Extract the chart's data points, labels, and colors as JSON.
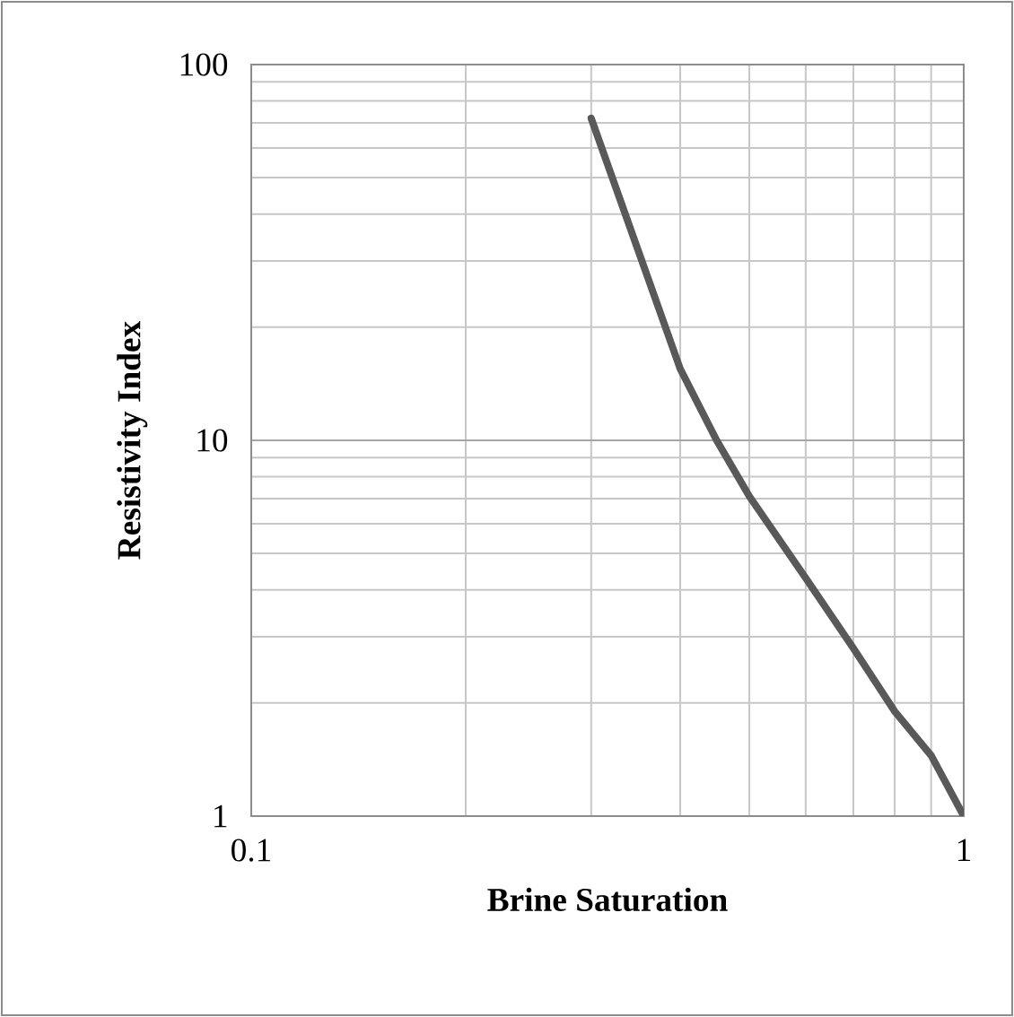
{
  "chart_data": {
    "type": "line",
    "xlabel": "Brine Saturation",
    "ylabel": "Resistivity Index",
    "x": [
      0.3,
      0.4,
      0.45,
      0.5,
      0.6,
      0.7,
      0.8,
      0.9,
      1.0
    ],
    "series": [
      {
        "color": "#595959",
        "values": [
          72,
          15.5,
          10,
          7.1,
          4.3,
          2.8,
          1.9,
          1.45,
          1
        ]
      }
    ],
    "xlim": [
      0.1,
      1
    ],
    "ylim": [
      1,
      100
    ],
    "xticks": [
      0.1,
      1
    ],
    "yticks": [
      1,
      10,
      100
    ],
    "log": "xy",
    "grid": true
  }
}
